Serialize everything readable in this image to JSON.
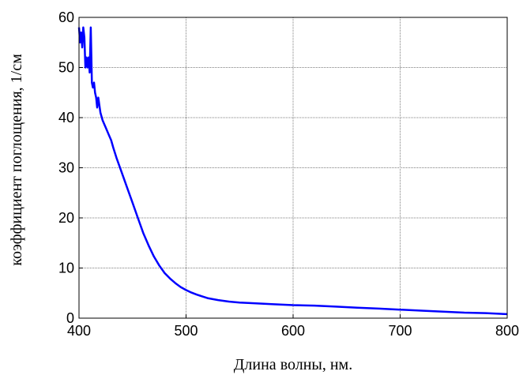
{
  "chart_data": {
    "type": "line",
    "title": "",
    "xlabel": "Длина волны, нм.",
    "ylabel": "коэффициент поглощения, 1/см",
    "xlim": [
      400,
      800
    ],
    "ylim": [
      0,
      60
    ],
    "xticks": [
      400,
      500,
      600,
      700,
      800
    ],
    "yticks": [
      0,
      10,
      20,
      30,
      40,
      50,
      60
    ],
    "grid": true,
    "legend": "none",
    "series": [
      {
        "color": "#0000ff",
        "x": [
          400,
          401,
          402,
          403,
          404,
          405,
          406,
          407,
          408,
          409,
          410,
          411,
          412,
          413,
          414,
          415,
          416,
          417,
          418,
          420,
          422,
          425,
          428,
          430,
          432,
          435,
          440,
          445,
          450,
          455,
          460,
          465,
          470,
          475,
          480,
          485,
          490,
          495,
          500,
          505,
          510,
          520,
          530,
          540,
          550,
          560,
          580,
          600,
          620,
          640,
          660,
          680,
          700,
          720,
          740,
          760,
          780,
          800
        ],
        "y": [
          58,
          55,
          57,
          54,
          58,
          56,
          50,
          52,
          50,
          52,
          49,
          58,
          47,
          46,
          47,
          45,
          44,
          42,
          44,
          41,
          39.5,
          38,
          36.5,
          35.5,
          34,
          32,
          29,
          26,
          23,
          20,
          17,
          14.5,
          12.3,
          10.5,
          9,
          7.9,
          7,
          6.2,
          5.6,
          5.1,
          4.7,
          4,
          3.6,
          3.3,
          3.1,
          3.0,
          2.8,
          2.6,
          2.5,
          2.3,
          2.1,
          1.9,
          1.7,
          1.5,
          1.3,
          1.1,
          1.0,
          0.8
        ]
      }
    ]
  }
}
